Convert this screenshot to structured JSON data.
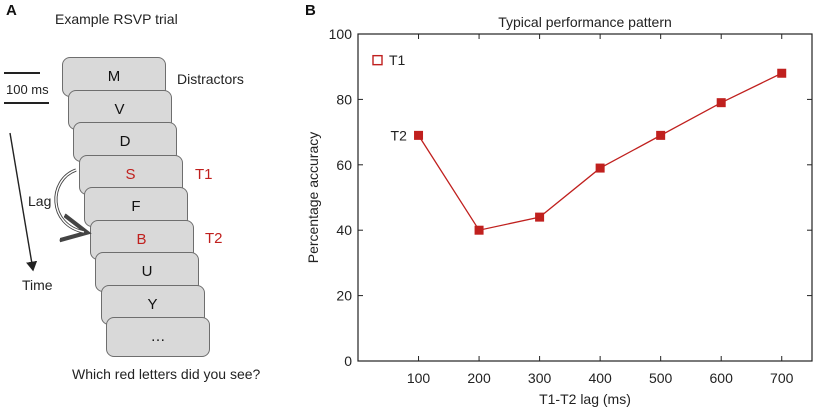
{
  "panel_a": {
    "letter": "A",
    "title": "Example RSVP trial",
    "scale_label": "100 ms",
    "distractors_label": "Distractors",
    "t1_label": "T1",
    "t2_label": "T2",
    "lag_label": "Lag",
    "time_label": "Time",
    "question": "Which red letters did you see?",
    "cards": [
      {
        "letter": "M",
        "target": false
      },
      {
        "letter": "V",
        "target": false
      },
      {
        "letter": "D",
        "target": false
      },
      {
        "letter": "S",
        "target": true
      },
      {
        "letter": "F",
        "target": false
      },
      {
        "letter": "B",
        "target": true
      },
      {
        "letter": "U",
        "target": false
      },
      {
        "letter": "Y",
        "target": false
      },
      {
        "letter": "…",
        "target": false
      }
    ]
  },
  "panel_b": {
    "letter": "B"
  },
  "chart_data": {
    "type": "line",
    "title": "Typical performance pattern",
    "xlabel": "T1-T2 lag (ms)",
    "ylabel": "Percentage accuracy",
    "x": [
      100,
      200,
      300,
      400,
      500,
      600,
      700
    ],
    "values": [
      69,
      40,
      44,
      59,
      69,
      79,
      88
    ],
    "xlim": [
      0,
      750
    ],
    "ylim": [
      0,
      100
    ],
    "xticks": [
      100,
      200,
      300,
      400,
      500,
      600,
      700
    ],
    "yticks": [
      0,
      20,
      40,
      60,
      80,
      100
    ],
    "t1_marker": {
      "label": "T1",
      "value": 92
    },
    "t2_point_label": "T2",
    "color": "#c0201e"
  }
}
